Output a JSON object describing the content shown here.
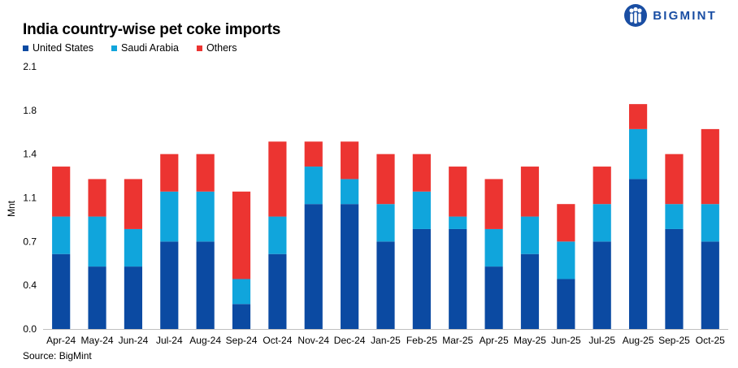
{
  "logo": {
    "text": "BIGMINT",
    "icon": "bigmint-logo-icon",
    "color": "#1a4ea3"
  },
  "source": "Source: BigMint",
  "colors": {
    "United States": "#0b4aa2",
    "Saudi Arabia": "#10a5dc",
    "Others": "#ec3431"
  },
  "chart_data": {
    "type": "bar",
    "stacked": true,
    "title": "India country-wise pet coke imports",
    "ylabel": "Mnt",
    "xlabel": "",
    "ylim": [
      0,
      2.1
    ],
    "yticks": [
      "0.0",
      "0.4",
      "0.7",
      "1.1",
      "1.4",
      "1.8",
      "2.1"
    ],
    "grid": false,
    "legend_position": "top-left",
    "categories": [
      "Apr-24",
      "May-24",
      "Jun-24",
      "Jul-24",
      "Aug-24",
      "Sep-24",
      "Oct-24",
      "Nov-24",
      "Dec-24",
      "Jan-25",
      "Feb-25",
      "Mar-25",
      "Apr-25",
      "May-25",
      "Jun-25",
      "Jul-25",
      "Aug-25",
      "Sep-25",
      "Oct-25"
    ],
    "series": [
      {
        "name": "United States",
        "values": [
          0.6,
          0.5,
          0.5,
          0.7,
          0.7,
          0.2,
          0.6,
          1.0,
          1.0,
          0.7,
          0.8,
          0.8,
          0.5,
          0.6,
          0.4,
          0.7,
          1.2,
          0.8,
          0.7
        ]
      },
      {
        "name": "Saudi Arabia",
        "values": [
          0.3,
          0.4,
          0.3,
          0.4,
          0.4,
          0.2,
          0.3,
          0.3,
          0.2,
          0.3,
          0.3,
          0.1,
          0.3,
          0.3,
          0.3,
          0.3,
          0.4,
          0.2,
          0.3
        ]
      },
      {
        "name": "Others",
        "values": [
          0.4,
          0.3,
          0.4,
          0.3,
          0.3,
          0.7,
          0.6,
          0.2,
          0.3,
          0.4,
          0.3,
          0.4,
          0.4,
          0.4,
          0.3,
          0.3,
          0.2,
          0.4,
          0.6
        ]
      }
    ]
  }
}
